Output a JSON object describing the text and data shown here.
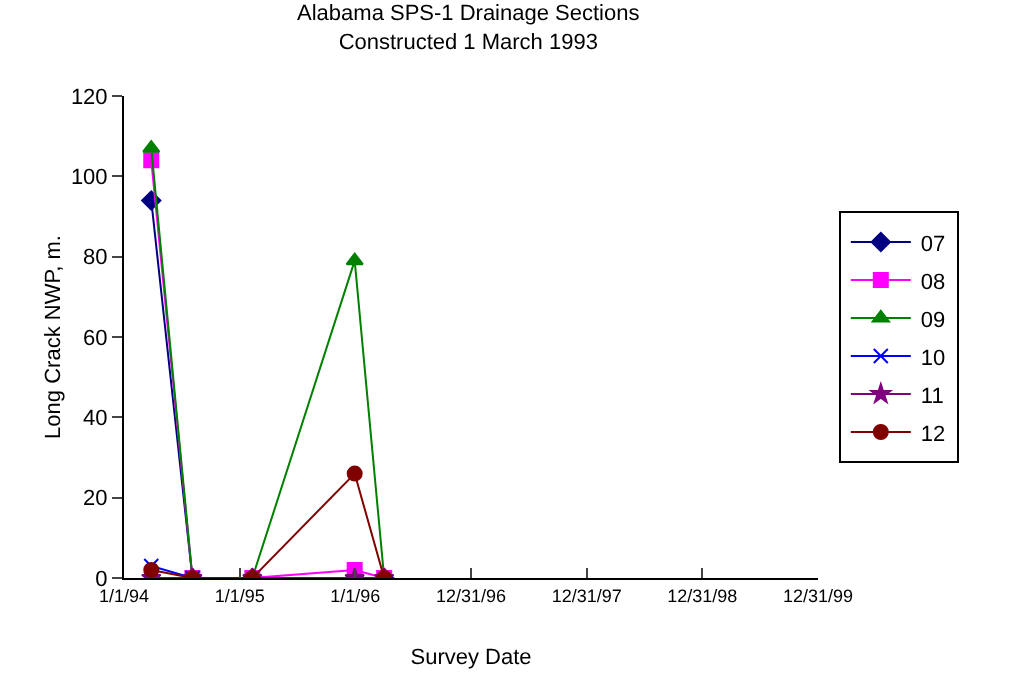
{
  "chart_data": {
    "type": "line",
    "title": "Alabama SPS-1 Drainage Sections\nConstructed 1 March 1993",
    "xlabel": "Survey Date",
    "ylabel": "Long Crack NWP, m.",
    "x": [
      "1994-03-28",
      "1994-08-05",
      "1995-02-10",
      "1995-12-30",
      "1996-04-01"
    ],
    "series": [
      {
        "name": "07",
        "color": "#000080",
        "marker": "diamond",
        "values": [
          94,
          0,
          0,
          0,
          0
        ]
      },
      {
        "name": "08",
        "color": "#ff00ff",
        "marker": "square",
        "values": [
          104,
          0,
          0,
          2,
          0
        ]
      },
      {
        "name": "09",
        "color": "#008000",
        "marker": "triangle",
        "values": [
          107,
          0,
          0,
          79,
          0
        ]
      },
      {
        "name": "10",
        "color": "#0000ff",
        "marker": "cross",
        "values": [
          3,
          0,
          null,
          null,
          null
        ]
      },
      {
        "name": "11",
        "color": "#800080",
        "marker": "star",
        "values": [
          0,
          0,
          0,
          0,
          0
        ]
      },
      {
        "name": "12",
        "color": "#800000",
        "marker": "circle",
        "values": [
          2,
          0,
          0,
          26,
          0
        ]
      }
    ],
    "xlim": [
      "1994-01-01",
      "1999-12-31"
    ],
    "xticks": [
      {
        "value": "1994-01-01",
        "label": "1/1/94"
      },
      {
        "value": "1995-01-01",
        "label": "1/1/95"
      },
      {
        "value": "1996-01-01",
        "label": "1/1/96"
      },
      {
        "value": "1996-12-31",
        "label": "12/31/96"
      },
      {
        "value": "1997-12-31",
        "label": "12/31/97"
      },
      {
        "value": "1998-12-31",
        "label": "12/31/98"
      },
      {
        "value": "1999-12-31",
        "label": "12/31/99"
      }
    ],
    "ylim": [
      0,
      120
    ],
    "yticks": [
      0,
      20,
      40,
      60,
      80,
      100,
      120
    ],
    "grid": false,
    "legend": "right",
    "line_style": "solid"
  }
}
